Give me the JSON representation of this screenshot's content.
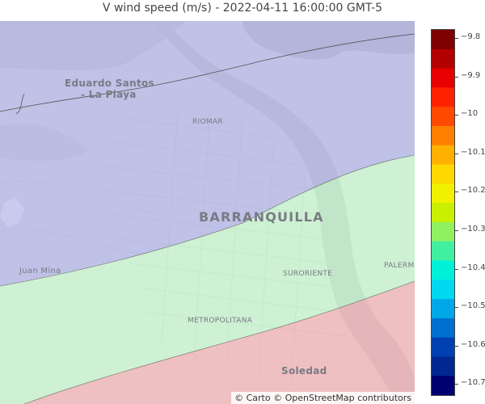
{
  "title": "V wind speed (m/s) - 2022-04-11 16:00:00 GMT-5",
  "map": {
    "labels": {
      "eduardo_santos": "Eduardo Santos",
      "la_playa": "- La Playa",
      "riomar": "RIOMAR",
      "barranquilla": "BARRANQUILLA",
      "juan_mina": "Juan Mina",
      "suroriente": "SURORIENTE",
      "palermo": "PALERMO",
      "metropolitana": "METROPOLITANA",
      "soledad": "Soledad"
    },
    "attribution": "© Carto © OpenStreetMap contributors",
    "overlay_colors": {
      "north_band": "#a7a9e3",
      "central_band": "#b6f7bd",
      "south_band": "#f3a5a5"
    }
  },
  "colorbar": {
    "ticks": [
      "−9.8",
      "−9.9",
      "−10",
      "−10.1",
      "−10.2",
      "−10.3",
      "−10.4",
      "−10.5",
      "−10.6",
      "−10.7"
    ],
    "colors": [
      "#7f0000",
      "#b30000",
      "#e60000",
      "#ff2200",
      "#ff4a00",
      "#ff8000",
      "#ffb000",
      "#ffd800",
      "#f0f000",
      "#c8f000",
      "#90f060",
      "#40f0a0",
      "#00f0d8",
      "#00d8f0",
      "#00a8e8",
      "#0070d0",
      "#0040b0",
      "#002890",
      "#000070"
    ]
  }
}
